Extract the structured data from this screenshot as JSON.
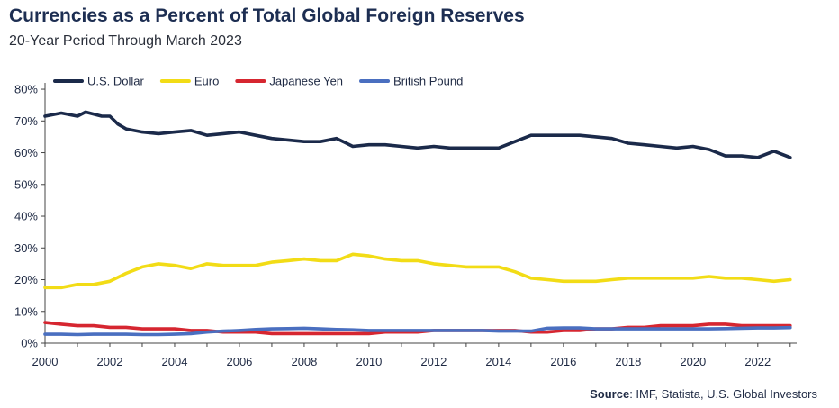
{
  "header": {
    "title": "Currencies as a Percent of Total Global Foreign Reserves",
    "subtitle": "20-Year Period Through March 2023"
  },
  "footer": {
    "source_label": "Source",
    "source_text": ": IMF, Statista, U.S. Global Investors"
  },
  "chart_data": {
    "type": "line",
    "x_ticks": [
      "2000",
      "2002",
      "2004",
      "2006",
      "2008",
      "2010",
      "2012",
      "2014",
      "2016",
      "2018",
      "2020",
      "2022"
    ],
    "y_ticks": [
      "0%",
      "10%",
      "20%",
      "30%",
      "40%",
      "50%",
      "60%",
      "70%",
      "80%"
    ],
    "xlim": [
      2000,
      2023.2
    ],
    "ylim": [
      0,
      82
    ],
    "grid": false,
    "legend_position": "top-left",
    "series": [
      {
        "name": "U.S. Dollar",
        "color": "#1b2a4a",
        "x": [
          2000,
          2000.5,
          2001,
          2001.25,
          2001.75,
          2002,
          2002.25,
          2002.5,
          2003,
          2003.5,
          2004,
          2004.5,
          2005,
          2005.5,
          2006,
          2006.5,
          2007,
          2007.5,
          2008,
          2008.5,
          2009,
          2009.5,
          2010,
          2010.5,
          2011,
          2011.5,
          2012,
          2012.5,
          2013,
          2013.5,
          2014,
          2014.5,
          2015,
          2015.5,
          2016,
          2016.5,
          2017,
          2017.5,
          2018,
          2018.5,
          2019,
          2019.5,
          2020,
          2020.5,
          2021,
          2021.5,
          2022,
          2022.5,
          2023
        ],
        "values": [
          71.5,
          72.5,
          71.5,
          72.8,
          71.5,
          71.5,
          69,
          67.5,
          66.5,
          66,
          66.5,
          67,
          65.5,
          66,
          66.5,
          65.5,
          64.5,
          64,
          63.5,
          63.5,
          64.5,
          62,
          62.5,
          62.5,
          62,
          61.5,
          62,
          61.5,
          61.5,
          61.5,
          61.5,
          63.5,
          65.5,
          65.5,
          65.5,
          65.5,
          65,
          64.5,
          63,
          62.5,
          62,
          61.5,
          62,
          61,
          59,
          59,
          58.5,
          60.5,
          58.5
        ]
      },
      {
        "name": "Euro",
        "color": "#f2dc16",
        "x": [
          2000,
          2000.5,
          2001,
          2001.5,
          2002,
          2002.5,
          2003,
          2003.5,
          2004,
          2004.5,
          2005,
          2005.5,
          2006,
          2006.5,
          2007,
          2007.5,
          2008,
          2008.5,
          2009,
          2009.5,
          2010,
          2010.5,
          2011,
          2011.5,
          2012,
          2012.5,
          2013,
          2013.5,
          2014,
          2014.5,
          2015,
          2015.5,
          2016,
          2016.5,
          2017,
          2017.5,
          2018,
          2018.5,
          2019,
          2019.5,
          2020,
          2020.5,
          2021,
          2021.5,
          2022,
          2022.5,
          2023
        ],
        "values": [
          17.5,
          17.5,
          18.5,
          18.5,
          19.5,
          22,
          24,
          25,
          24.5,
          23.5,
          25,
          24.5,
          24.5,
          24.5,
          25.5,
          26,
          26.5,
          26,
          26,
          28,
          27.5,
          26.5,
          26,
          26,
          25,
          24.5,
          24,
          24,
          24,
          22.5,
          20.5,
          20,
          19.5,
          19.5,
          19.5,
          20,
          20.5,
          20.5,
          20.5,
          20.5,
          20.5,
          21,
          20.5,
          20.5,
          20,
          19.5,
          20
        ]
      },
      {
        "name": "Japanese Yen",
        "color": "#d62630",
        "x": [
          2000,
          2000.5,
          2001,
          2001.5,
          2002,
          2002.5,
          2003,
          2003.5,
          2004,
          2004.5,
          2005,
          2005.5,
          2006,
          2006.5,
          2007,
          2007.5,
          2008,
          2008.5,
          2009,
          2009.5,
          2010,
          2010.5,
          2011,
          2011.5,
          2012,
          2012.5,
          2013,
          2013.5,
          2014,
          2014.5,
          2015,
          2015.5,
          2016,
          2016.5,
          2017,
          2017.5,
          2018,
          2018.5,
          2019,
          2019.5,
          2020,
          2020.5,
          2021,
          2021.5,
          2022,
          2022.5,
          2023
        ],
        "values": [
          6.5,
          6,
          5.5,
          5.5,
          5,
          5,
          4.5,
          4.5,
          4.5,
          4,
          4,
          3.5,
          3.5,
          3.5,
          3,
          3,
          3,
          3,
          3,
          3,
          3,
          3.5,
          3.5,
          3.5,
          4,
          4,
          4,
          4,
          4,
          4,
          3.5,
          3.5,
          4,
          4,
          4.5,
          4.5,
          5,
          5,
          5.5,
          5.5,
          5.5,
          6,
          6,
          5.5,
          5.5,
          5.5,
          5.5
        ]
      },
      {
        "name": "British Pound",
        "color": "#4a6fc0",
        "x": [
          2000,
          2000.5,
          2001,
          2001.5,
          2002,
          2002.5,
          2003,
          2003.5,
          2004,
          2004.5,
          2005,
          2005.5,
          2006,
          2006.5,
          2007,
          2007.5,
          2008,
          2008.5,
          2009,
          2009.5,
          2010,
          2010.5,
          2011,
          2011.5,
          2012,
          2012.5,
          2013,
          2013.5,
          2014,
          2014.5,
          2015,
          2015.5,
          2016,
          2016.5,
          2017,
          2017.5,
          2018,
          2018.5,
          2019,
          2019.5,
          2020,
          2020.5,
          2021,
          2021.5,
          2022,
          2022.5,
          2023
        ],
        "values": [
          2.8,
          2.8,
          2.7,
          2.8,
          2.8,
          2.8,
          2.7,
          2.7,
          2.8,
          3,
          3.5,
          3.8,
          4,
          4.3,
          4.5,
          4.6,
          4.7,
          4.5,
          4.3,
          4.2,
          4,
          4,
          4,
          4,
          4,
          4,
          4,
          4,
          3.8,
          3.8,
          3.8,
          4.7,
          4.8,
          4.8,
          4.5,
          4.5,
          4.5,
          4.5,
          4.5,
          4.5,
          4.5,
          4.5,
          4.6,
          4.7,
          4.8,
          4.8,
          4.9
        ]
      }
    ]
  }
}
